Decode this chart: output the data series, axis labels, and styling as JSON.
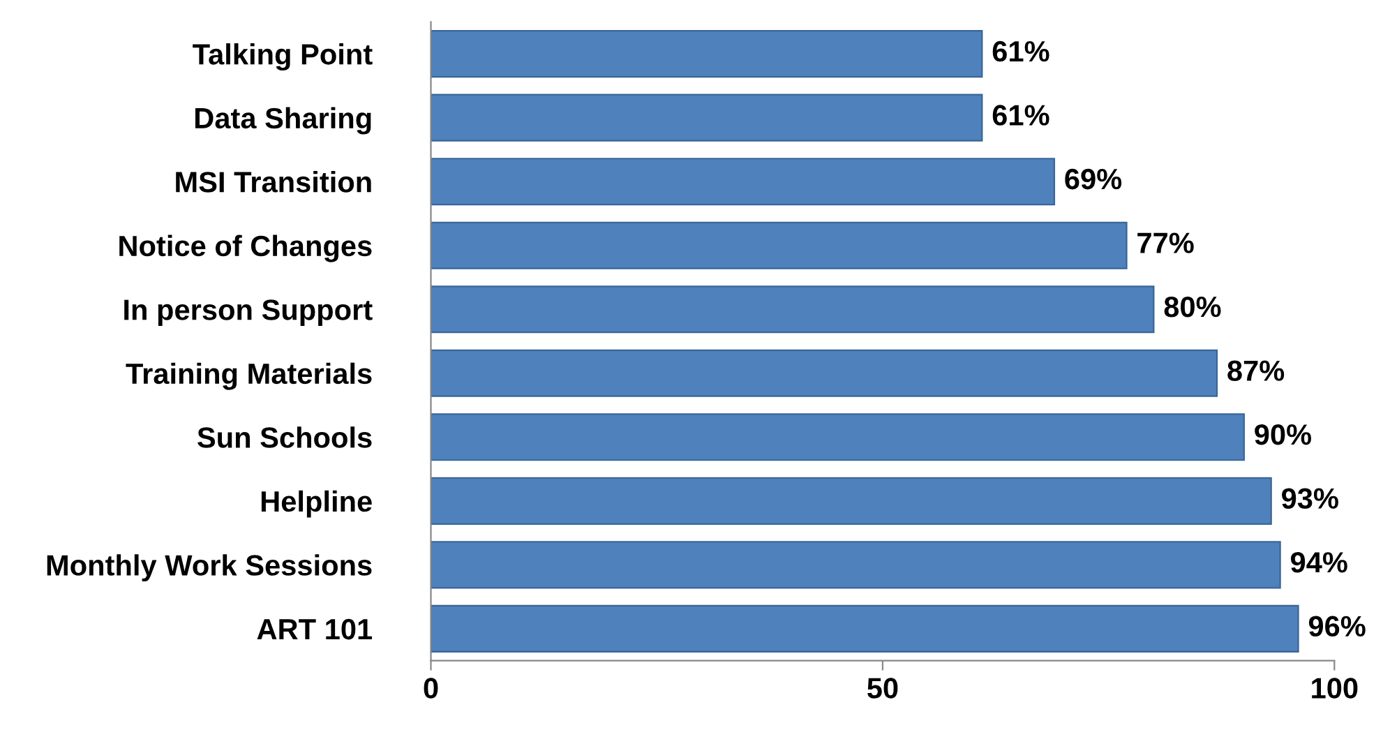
{
  "chart_data": {
    "type": "bar",
    "orientation": "horizontal",
    "categories": [
      "Talking Point",
      "Data Sharing",
      "MSI Transition",
      "Notice of Changes",
      "In person Support",
      "Training Materials",
      "Sun Schools",
      "Helpline",
      "Monthly Work Sessions",
      "ART 101"
    ],
    "values": [
      61,
      61,
      69,
      77,
      80,
      87,
      90,
      93,
      94,
      96
    ],
    "value_labels": [
      "61%",
      "61%",
      "69%",
      "77%",
      "80%",
      "87%",
      "90%",
      "93%",
      "94%",
      "96%"
    ],
    "color": "#4f81bd",
    "xlim": [
      0,
      100
    ],
    "xticks": [
      0,
      50,
      100
    ],
    "grid": false,
    "legend": false
  }
}
